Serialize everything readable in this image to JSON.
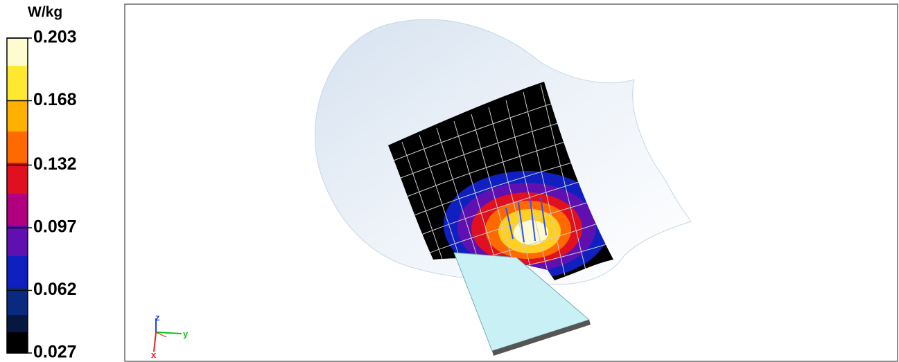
{
  "legend": {
    "unit": "W/kg",
    "ticks": [
      0.203,
      0.168,
      0.132,
      0.097,
      0.062,
      0.027
    ]
  },
  "axes_gizmo": {
    "labels": [
      "z",
      "y",
      "x"
    ]
  }
}
